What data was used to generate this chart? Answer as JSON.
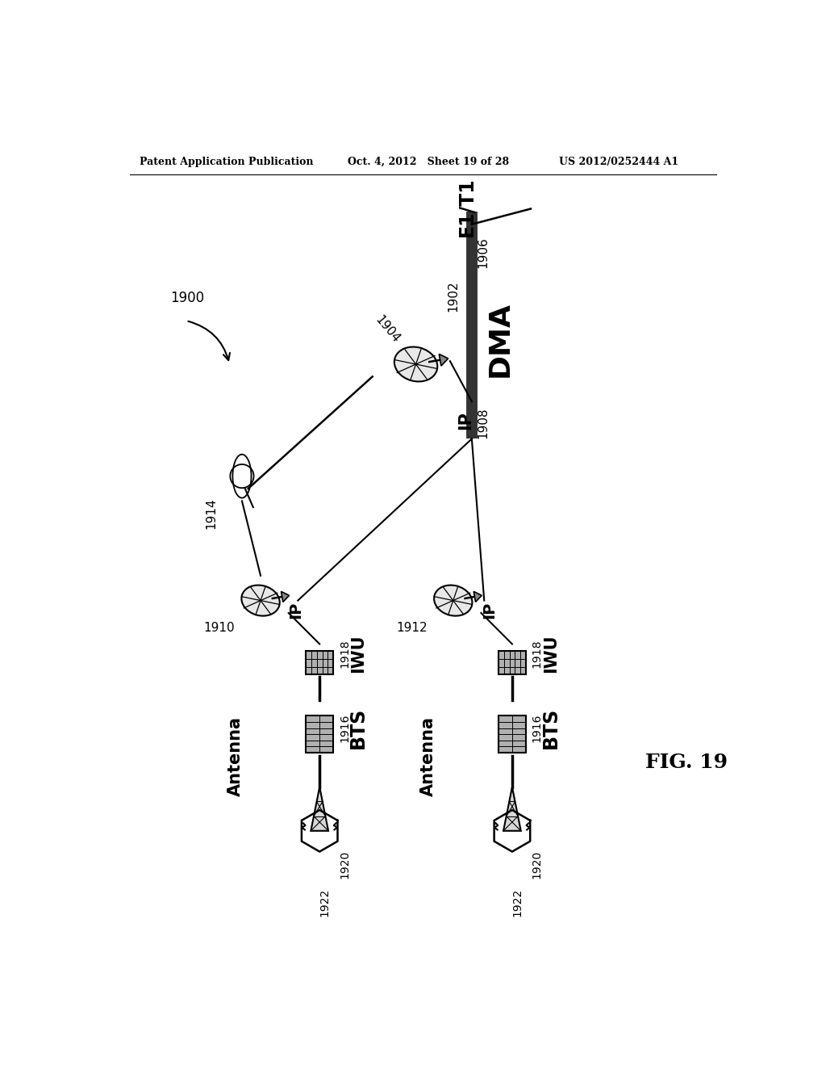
{
  "bg_color": "#ffffff",
  "header_left": "Patent Application Publication",
  "header_center": "Oct. 4, 2012   Sheet 19 of 28",
  "header_right": "US 2012/0252444 A1",
  "fig_label": "FIG. 19",
  "label_1900": "1900",
  "label_1902": "1902",
  "label_1904": "1904",
  "label_1906": "1906",
  "label_1908": "1908",
  "label_1910": "1910",
  "label_1912": "1912",
  "label_1914": "1914",
  "label_1916": "1916",
  "label_1918": "1918",
  "label_1920": "1920",
  "label_1922": "1922",
  "text_DMA": "DMA",
  "text_E1T1": "E1/T1",
  "text_IP_top": "IP",
  "text_IWU_left": "IWU",
  "text_IWU_right": "IWU",
  "text_IP_left": "IP",
  "text_IP_right": "IP",
  "text_BTS_left": "BTS",
  "text_BTS_right": "BTS",
  "text_Antenna_left": "Antenna",
  "text_Antenna_right": "Antenna"
}
